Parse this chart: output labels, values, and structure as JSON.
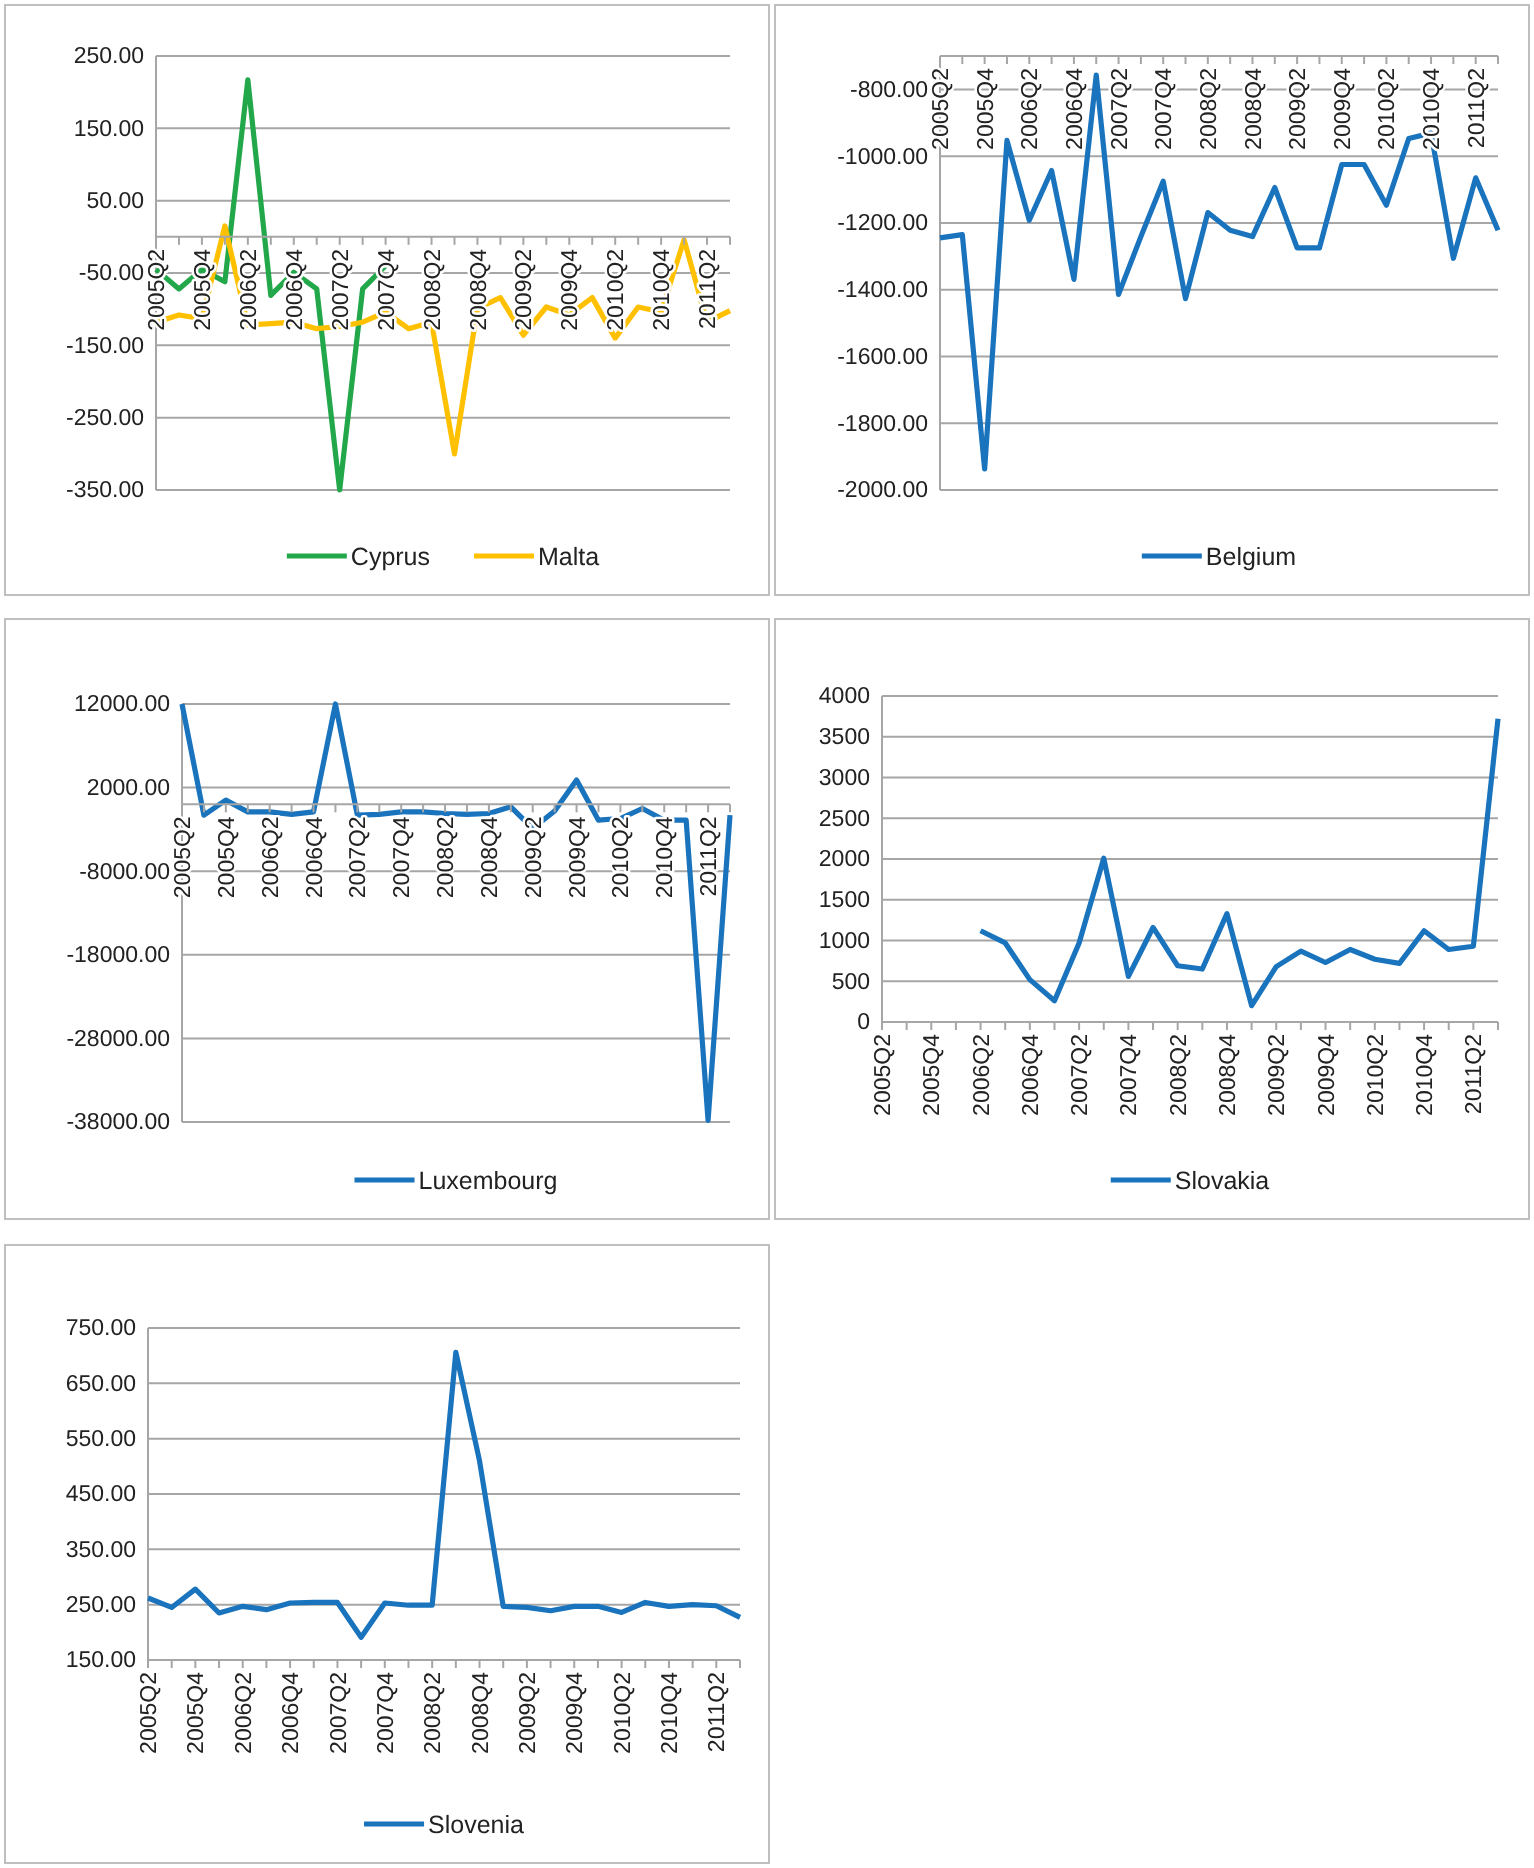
{
  "chart_data": [
    {
      "type": "line",
      "categories": [
        "2005Q2",
        null,
        "2005Q4",
        null,
        "2006Q2",
        null,
        "2006Q4",
        null,
        "2007Q2",
        null,
        "2007Q4",
        null,
        "2008Q2",
        null,
        "2008Q4",
        null,
        "2009Q2",
        null,
        "2009Q4",
        null,
        "2010Q2",
        null,
        "2010Q4",
        null,
        "2011Q2",
        null
      ],
      "series": [
        {
          "name": "Cyprus",
          "color": "#22a84a",
          "values": [
            -45,
            -72,
            -45,
            -62,
            217,
            -81,
            -49,
            -72,
            -350,
            -72,
            -40,
            null,
            null,
            null,
            null,
            null,
            null,
            null,
            null,
            null,
            null,
            null,
            null,
            null,
            null,
            null
          ]
        },
        {
          "name": "Malta",
          "color": "#ffc000",
          "values": [
            -118,
            -108,
            -113,
            15,
            -122,
            -120,
            -118,
            -127,
            -124,
            -118,
            -104,
            -127,
            -118,
            -300,
            -99,
            -84,
            -136,
            -97,
            -108,
            -84,
            -140,
            -97,
            -104,
            -4,
            -118,
            -102
          ]
        }
      ],
      "ylim": [
        -350,
        250
      ],
      "yticks": [
        {
          "value": 250,
          "label": "250.00"
        },
        {
          "value": 150,
          "label": "150.00"
        },
        {
          "value": 50,
          "label": "50.00"
        },
        {
          "value": -50,
          "label": "-50.00"
        },
        {
          "value": -150,
          "label": "-150.00"
        },
        {
          "value": -250,
          "label": "-250.00"
        },
        {
          "value": -350,
          "label": "-350.00"
        }
      ],
      "grid": "y",
      "legend": "bottom"
    },
    {
      "type": "line",
      "categories": [
        "2005Q2",
        null,
        "2005Q4",
        null,
        "2006Q2",
        null,
        "2006Q4",
        null,
        "2007Q2",
        null,
        "2007Q4",
        null,
        "2008Q2",
        null,
        "2008Q4",
        null,
        "2009Q2",
        null,
        "2009Q4",
        null,
        "2010Q2",
        null,
        "2010Q4",
        null,
        "2011Q2",
        null
      ],
      "series": [
        {
          "name": "Belgium",
          "color": "#1a73bd",
          "values": [
            -1245,
            -1235,
            -1937,
            -953,
            -1192,
            -1043,
            -1369,
            -757,
            -1414,
            -1241,
            -1075,
            -1427,
            -1169,
            -1222,
            -1241,
            -1094,
            -1275,
            -1275,
            -1025,
            -1025,
            -1147,
            -947,
            -931,
            -1306,
            -1065,
            -1222
          ]
        }
      ],
      "ylim": [
        -2000,
        -700
      ],
      "yticks": [
        {
          "value": -800,
          "label": "-800.00"
        },
        {
          "value": -1000,
          "label": "-1000.00"
        },
        {
          "value": -1200,
          "label": "-1200.00"
        },
        {
          "value": -1400,
          "label": "-1400.00"
        },
        {
          "value": -1600,
          "label": "-1600.00"
        },
        {
          "value": -1800,
          "label": "-1800.00"
        },
        {
          "value": -2000,
          "label": "-2000.00"
        }
      ],
      "grid": "y",
      "legend": "bottom"
    },
    {
      "type": "line",
      "categories": [
        "2005Q2",
        null,
        "2005Q4",
        null,
        "2006Q2",
        null,
        "2006Q4",
        null,
        "2007Q2",
        null,
        "2007Q4",
        null,
        "2008Q2",
        null,
        "2008Q4",
        null,
        "2009Q2",
        null,
        "2009Q4",
        null,
        "2010Q2",
        null,
        "2010Q4",
        null,
        "2011Q2",
        null
      ],
      "series": [
        {
          "name": "Luxembourg",
          "color": "#1a73bd",
          "values": [
            12000,
            -1300,
            500,
            -900,
            -900,
            -1200,
            -900,
            12000,
            -1300,
            -1200,
            -900,
            -900,
            -1100,
            -1200,
            -1100,
            -300,
            -2900,
            -800,
            2900,
            -1900,
            -1700,
            -500,
            -1900,
            -1900,
            -37800,
            -1300
          ]
        }
      ],
      "ylim": [
        -38000,
        12000
      ],
      "yticks": [
        {
          "value": 12000,
          "label": "12000.00"
        },
        {
          "value": 2000,
          "label": "2000.00"
        },
        {
          "value": -8000,
          "label": "-8000.00"
        },
        {
          "value": -18000,
          "label": "-18000.00"
        },
        {
          "value": -28000,
          "label": "-28000.00"
        },
        {
          "value": -38000,
          "label": "-38000.00"
        }
      ],
      "grid": "y",
      "legend": "bottom"
    },
    {
      "type": "line",
      "categories": [
        "2005Q2",
        null,
        "2005Q4",
        null,
        "2006Q2",
        null,
        "2006Q4",
        null,
        "2007Q2",
        null,
        "2007Q4",
        null,
        "2008Q2",
        null,
        "2008Q4",
        null,
        "2009Q2",
        null,
        "2009Q4",
        null,
        "2010Q2",
        null,
        "2010Q4",
        null,
        "2011Q2",
        null
      ],
      "series": [
        {
          "name": "Slovakia",
          "color": "#1a73bd",
          "values": [
            null,
            null,
            null,
            null,
            1120,
            970,
            520,
            260,
            970,
            2010,
            560,
            1160,
            690,
            650,
            1330,
            200,
            680,
            870,
            730,
            890,
            770,
            720,
            1120,
            890,
            930,
            3720
          ]
        }
      ],
      "ylim": [
        0,
        4000
      ],
      "yticks": [
        0,
        500,
        1000,
        1500,
        2000,
        2500,
        3000,
        3500,
        4000
      ],
      "grid": "y",
      "legend": "bottom"
    },
    {
      "type": "line",
      "categories": [
        "2005Q2",
        null,
        "2005Q4",
        null,
        "2006Q2",
        null,
        "2006Q4",
        null,
        "2007Q2",
        null,
        "2007Q4",
        null,
        "2008Q2",
        null,
        "2008Q4",
        null,
        "2009Q2",
        null,
        "2009Q4",
        null,
        "2010Q2",
        null,
        "2010Q4",
        null,
        "2011Q2",
        null
      ],
      "series": [
        {
          "name": "Slovenia",
          "color": "#1a73bd",
          "values": [
            262,
            245,
            278,
            235,
            247,
            241,
            253,
            254,
            254,
            191,
            253,
            249,
            249,
            706,
            510,
            247,
            245,
            239,
            247,
            247,
            236,
            254,
            247,
            250,
            248,
            227
          ]
        }
      ],
      "ylim": [
        150,
        750
      ],
      "yticks": [
        {
          "value": 750,
          "label": "750.00"
        },
        {
          "value": 650,
          "label": "650.00"
        },
        {
          "value": 550,
          "label": "550.00"
        },
        {
          "value": 450,
          "label": "450.00"
        },
        {
          "value": 350,
          "label": "350.00"
        },
        {
          "value": 250,
          "label": "250.00"
        },
        {
          "value": 150,
          "label": "150.00"
        }
      ],
      "grid": "y",
      "legend": "bottom"
    }
  ]
}
